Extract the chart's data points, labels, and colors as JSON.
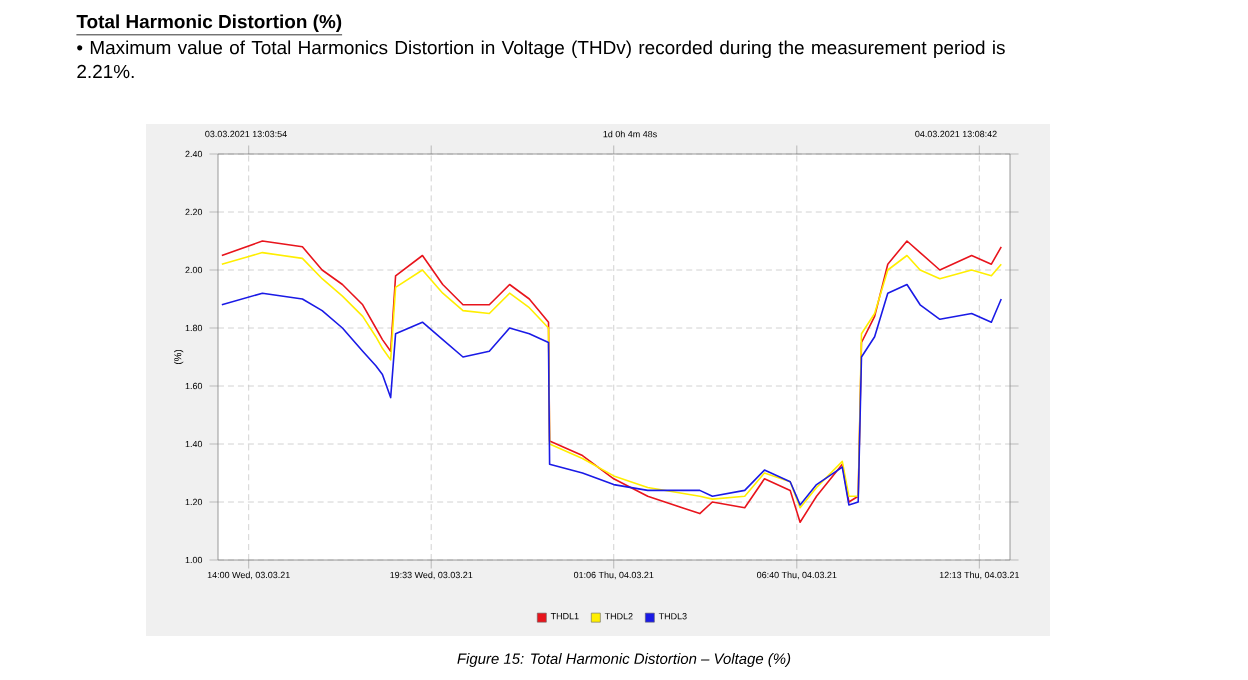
{
  "chart_data": {
    "type": "line",
    "title": "Total Harmonic Distortion (%)",
    "subtitle": "• Maximum value of Total Harmonics Distortion in Voltage (THDv) recorded during the measurement period is 2.21%.",
    "ylabel": "(%)",
    "annotations": [
      "03.03.2021 13:03:54",
      "1d 0h 4m 48s",
      "04.03.2021 13:08:42",
      "Figure 15: Total Harmonic Distortion – Voltage (%)"
    ],
    "x": [
      "2021-03-03T13:11",
      "2021-03-03T14:25",
      "2021-03-03T15:38",
      "2021-03-03T16:14",
      "2021-03-03T16:51",
      "2021-03-03T17:28",
      "2021-03-03T17:52",
      "2021-03-03T18:04",
      "2021-03-03T18:19",
      "2021-03-03T18:28",
      "2021-03-03T19:17",
      "2021-03-03T19:54",
      "2021-03-03T20:31",
      "2021-03-03T21:19",
      "2021-03-03T21:56",
      "2021-03-03T22:32",
      "2021-03-03T23:07",
      "2021-03-03T23:09",
      "2021-03-04T00:09",
      "2021-03-04T01:06",
      "2021-03-04T02:08",
      "2021-03-04T03:43",
      "2021-03-04T04:06",
      "2021-03-04T05:05",
      "2021-03-04T05:41",
      "2021-03-04T06:28",
      "2021-03-04T06:46",
      "2021-03-04T07:16",
      "2021-03-04T08:03",
      "2021-03-04T08:15",
      "2021-03-04T08:32",
      "2021-03-04T08:38",
      "2021-03-04T09:02",
      "2021-03-04T09:26",
      "2021-03-04T10:01",
      "2021-03-04T10:25",
      "2021-03-04T11:01",
      "2021-03-04T11:59",
      "2021-03-04T12:35",
      "2021-03-04T12:53"
    ],
    "series": [
      {
        "name": "THDL1",
        "color": "#e8141c",
        "values": [
          2.05,
          2.1,
          2.08,
          2.0,
          1.95,
          1.88,
          1.8,
          1.76,
          1.72,
          1.98,
          2.05,
          1.95,
          1.88,
          1.88,
          1.95,
          1.9,
          1.82,
          1.41,
          1.36,
          1.28,
          1.22,
          1.16,
          1.2,
          1.18,
          1.28,
          1.24,
          1.13,
          1.22,
          1.33,
          1.2,
          1.22,
          1.75,
          1.84,
          2.02,
          2.1,
          2.06,
          2.0,
          2.05,
          2.02,
          2.08
        ]
      },
      {
        "name": "THDL2",
        "color": "#ffee00",
        "values": [
          2.02,
          2.06,
          2.04,
          1.97,
          1.91,
          1.84,
          1.77,
          1.73,
          1.69,
          1.94,
          2.0,
          1.92,
          1.86,
          1.85,
          1.92,
          1.87,
          1.8,
          1.4,
          1.35,
          1.29,
          1.25,
          1.22,
          1.21,
          1.22,
          1.3,
          1.27,
          1.18,
          1.25,
          1.34,
          1.22,
          1.22,
          1.78,
          1.85,
          2.0,
          2.05,
          2.0,
          1.97,
          2.0,
          1.98,
          2.02
        ]
      },
      {
        "name": "THDL3",
        "color": "#1a1ae6",
        "values": [
          1.88,
          1.92,
          1.9,
          1.86,
          1.8,
          1.72,
          1.67,
          1.64,
          1.56,
          1.78,
          1.82,
          1.76,
          1.7,
          1.72,
          1.8,
          1.78,
          1.75,
          1.33,
          1.3,
          1.26,
          1.24,
          1.24,
          1.22,
          1.24,
          1.31,
          1.27,
          1.19,
          1.26,
          1.32,
          1.19,
          1.2,
          1.7,
          1.77,
          1.92,
          1.95,
          1.88,
          1.83,
          1.85,
          1.82,
          1.9
        ]
      }
    ],
    "xlim": [
      "2021-03-03T13:04",
      "2021-03-04T13:09"
    ],
    "ylim": [
      1.0,
      2.4
    ],
    "xticks": [
      {
        "value": "2021-03-03T14:00",
        "label": "14:00 Wed, 03.03.21"
      },
      {
        "value": "2021-03-03T19:33",
        "label": "19:33 Wed, 03.03.21"
      },
      {
        "value": "2021-03-04T01:06",
        "label": "01:06 Thu, 04.03.21"
      },
      {
        "value": "2021-03-04T06:40",
        "label": "06:40 Thu, 04.03.21"
      },
      {
        "value": "2021-03-04T12:13",
        "label": "12:13 Thu, 04.03.21"
      }
    ],
    "yticks": [
      {
        "value": 1.0,
        "label": "1.00"
      },
      {
        "value": 1.2,
        "label": "1.20"
      },
      {
        "value": 1.4,
        "label": "1.40"
      },
      {
        "value": 1.6,
        "label": "1.60"
      },
      {
        "value": 1.8,
        "label": "1.80"
      },
      {
        "value": 2.0,
        "label": "2.00"
      },
      {
        "value": 2.2,
        "label": "2.20"
      },
      {
        "value": 2.4,
        "label": "2.40"
      }
    ],
    "grid": true,
    "legend": "bottom",
    "marker": "none",
    "line_style": "solid"
  }
}
